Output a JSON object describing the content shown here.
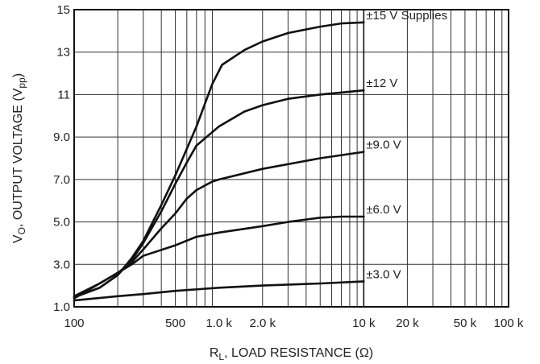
{
  "chart_data": {
    "type": "line",
    "title": "",
    "xlabel": {
      "main": "R",
      "sub": "L",
      "rest": ", LOAD RESISTANCE (Ω)"
    },
    "ylabel": {
      "main": "V",
      "sub": "O",
      "mid": ", OUTPUT VOLTAGE (V",
      "sub2": "pp",
      "end": ")"
    },
    "x_scale": "log",
    "xlim": [
      100,
      100000
    ],
    "ylim": [
      1.0,
      15
    ],
    "grid": true,
    "x_ticks": [
      {
        "value": 100,
        "label": "100"
      },
      {
        "value": 500,
        "label": "500"
      },
      {
        "value": 1000,
        "label": "1.0 k"
      },
      {
        "value": 2000,
        "label": "2.0 k"
      },
      {
        "value": 10000,
        "label": "10 k"
      },
      {
        "value": 20000,
        "label": "20 k"
      },
      {
        "value": 50000,
        "label": "50 k"
      },
      {
        "value": 100000,
        "label": "100 k"
      }
    ],
    "y_ticks": [
      {
        "value": 1.0,
        "label": "1.0"
      },
      {
        "value": 3.0,
        "label": "3.0"
      },
      {
        "value": 5.0,
        "label": "5.0"
      },
      {
        "value": 7.0,
        "label": "7.0"
      },
      {
        "value": 9.0,
        "label": "9.0"
      },
      {
        "value": 11,
        "label": "11"
      },
      {
        "value": 13,
        "label": "13"
      },
      {
        "value": 15,
        "label": "15"
      }
    ],
    "series": [
      {
        "name": "±15 V Supplies",
        "x": [
          100,
          150,
          200,
          250,
          300,
          400,
          500,
          700,
          900,
          1050,
          1500,
          2000,
          3000,
          5000,
          7000,
          10000
        ],
        "y": [
          1.45,
          1.9,
          2.5,
          3.3,
          4.1,
          5.8,
          7.2,
          9.5,
          11.5,
          12.4,
          13.1,
          13.5,
          13.9,
          14.2,
          14.35,
          14.4
        ]
      },
      {
        "name": "±12 V",
        "x": [
          100,
          150,
          200,
          250,
          300,
          400,
          500,
          600,
          700,
          1000,
          1500,
          2000,
          3000,
          5000,
          10000
        ],
        "y": [
          1.45,
          1.9,
          2.5,
          3.2,
          4.0,
          5.5,
          6.8,
          7.8,
          8.6,
          9.5,
          10.2,
          10.5,
          10.8,
          11.0,
          11.2
        ]
      },
      {
        "name": "±9.0 V",
        "x": [
          100,
          150,
          200,
          250,
          300,
          400,
          500,
          600,
          700,
          900,
          1000,
          2000,
          5000,
          10000
        ],
        "y": [
          1.5,
          2.1,
          2.6,
          3.1,
          3.7,
          4.7,
          5.4,
          6.1,
          6.5,
          6.9,
          7.0,
          7.5,
          8.0,
          8.3
        ]
      },
      {
        "name": "±6.0 V",
        "x": [
          100,
          200,
          250,
          300,
          500,
          700,
          1000,
          2000,
          3000,
          5000,
          7000,
          10000
        ],
        "y": [
          1.4,
          2.6,
          3.0,
          3.4,
          3.9,
          4.3,
          4.5,
          4.8,
          5.0,
          5.2,
          5.25,
          5.25
        ]
      },
      {
        "name": "±3.0 V",
        "x": [
          100,
          200,
          300,
          500,
          1000,
          2000,
          5000,
          10000
        ],
        "y": [
          1.3,
          1.5,
          1.6,
          1.75,
          1.9,
          2.0,
          2.1,
          2.2
        ]
      }
    ]
  }
}
